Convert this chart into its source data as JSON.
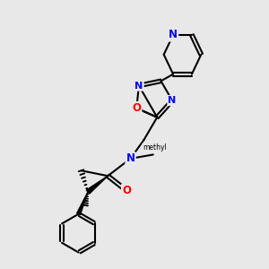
{
  "bg_color": "#e8e8e8",
  "atom_colors": {
    "N": "#0000ff",
    "O": "#ff0000",
    "C": "#000000"
  },
  "bond_color": "#000000",
  "line_width": 1.5
}
